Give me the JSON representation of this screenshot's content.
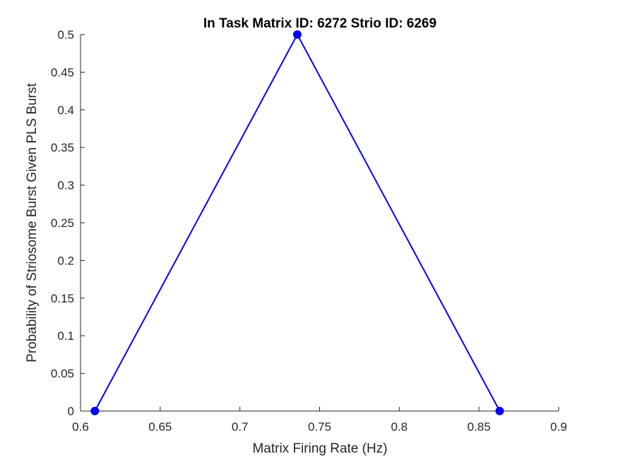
{
  "chart_data": {
    "type": "line",
    "title": "In Task Matrix ID: 6272 Strio ID: 6269",
    "xlabel": "Matrix Firing Rate (Hz)",
    "ylabel": "Probability of Striosome Burst Given PLS Burst",
    "xlim": [
      0.6,
      0.9
    ],
    "ylim": [
      0,
      0.5
    ],
    "x_ticks": [
      "0.6",
      "0.65",
      "0.7",
      "0.75",
      "0.8",
      "0.85",
      "0.9"
    ],
    "y_ticks": [
      "0",
      "0.05",
      "0.1",
      "0.15",
      "0.2",
      "0.25",
      "0.3",
      "0.35",
      "0.4",
      "0.45",
      "0.5"
    ],
    "grid": false,
    "legend": "none",
    "series": [
      {
        "color": "#0000ff",
        "marker": "circle",
        "x": [
          0.609,
          0.736,
          0.863
        ],
        "y": [
          0,
          0.5,
          0
        ]
      }
    ]
  },
  "colors": {
    "axis": "#262626",
    "series": "#0000ff"
  }
}
